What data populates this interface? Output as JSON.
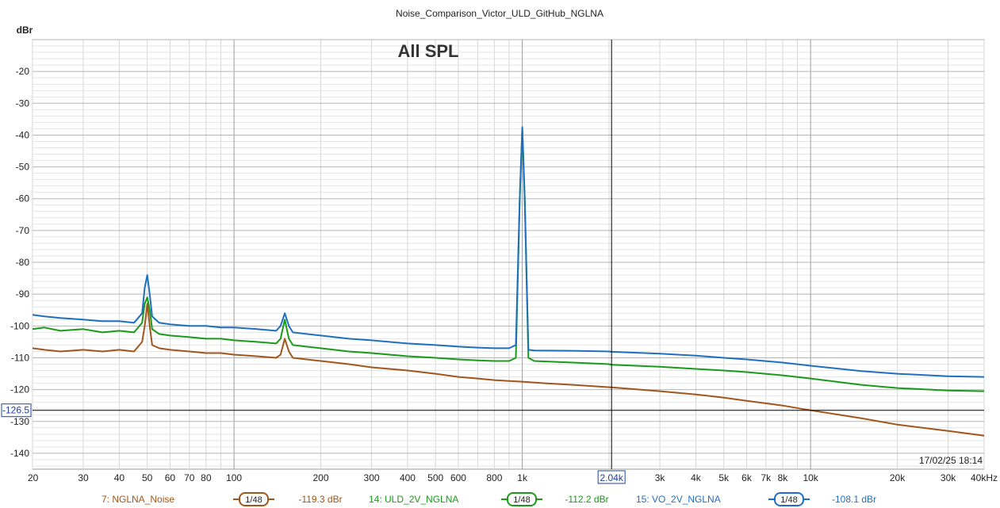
{
  "chart_data": {
    "type": "line",
    "title": "Noise_Comparison_Victor_ULD_GitHub_NGLNA",
    "annotation": "All SPL",
    "ylabel": "dBr",
    "xlabel": "",
    "x_scale": "log",
    "xlim": [
      20,
      40000
    ],
    "ylim": [
      -145,
      -10
    ],
    "grid": true,
    "x_tick_labels": [
      "20",
      "30",
      "40",
      "50",
      "60",
      "70",
      "80",
      "100",
      "200",
      "300",
      "400",
      "500",
      "600",
      "800",
      "1k",
      "3k",
      "4k",
      "5k",
      "6k",
      "7k",
      "8k",
      "10k",
      "20k",
      "30k",
      "40kHz"
    ],
    "x_tick_values": [
      20,
      30,
      40,
      50,
      60,
      70,
      80,
      100,
      200,
      300,
      400,
      500,
      600,
      800,
      1000,
      3000,
      4000,
      5000,
      6000,
      7000,
      8000,
      10000,
      20000,
      30000,
      40000
    ],
    "y_tick_values": [
      -20,
      -30,
      -40,
      -50,
      -60,
      -70,
      -80,
      -90,
      -100,
      -110,
      -120,
      -130,
      -140
    ],
    "y_tick_labels": [
      "-20",
      "-30",
      "-40",
      "-50",
      "-60",
      "-70",
      "-80",
      "-90",
      "-100",
      "-110",
      "-120",
      "-130",
      "-140"
    ],
    "cursor": {
      "x": 2040,
      "x_label": "2.04k",
      "y": -126.5,
      "y_label": "-126.5"
    },
    "timestamp": "17/02/25 18:14",
    "series": [
      {
        "name": "7: NGLNA_Noise",
        "color": "#a0561c",
        "smoothing": "1/48",
        "cursor_value": "-119.3 dBr",
        "x": [
          20,
          22,
          25,
          30,
          35,
          40,
          45,
          48,
          49,
          50,
          51,
          52,
          55,
          60,
          70,
          80,
          90,
          100,
          120,
          140,
          145,
          150,
          155,
          160,
          200,
          250,
          300,
          400,
          500,
          600,
          700,
          800,
          900,
          1000,
          1200,
          1500,
          2040,
          3000,
          4000,
          5000,
          6000,
          8000,
          10000,
          15000,
          20000,
          30000,
          40000
        ],
        "values": [
          -107,
          -107.5,
          -108,
          -107.5,
          -108,
          -107.5,
          -108,
          -105,
          -100,
          -93,
          -100,
          -106,
          -107,
          -107.5,
          -108,
          -108.5,
          -108.5,
          -109,
          -109.5,
          -110,
          -109,
          -104,
          -108,
          -110,
          -111,
          -112,
          -113,
          -114,
          -115,
          -116,
          -116.5,
          -117,
          -117.3,
          -117.5,
          -118,
          -118.5,
          -119.3,
          -120.5,
          -121.5,
          -122.5,
          -123.5,
          -125,
          -126.5,
          -129,
          -131,
          -133,
          -134.5
        ]
      },
      {
        "name": "14: ULD_2V_NGLNA",
        "color": "#1a9a1a",
        "smoothing": "1/48",
        "cursor_value": "-112.2 dBr",
        "x": [
          20,
          22,
          25,
          30,
          35,
          40,
          45,
          48,
          49,
          50,
          51,
          52,
          55,
          60,
          70,
          80,
          90,
          100,
          120,
          140,
          145,
          150,
          155,
          160,
          200,
          250,
          300,
          400,
          500,
          600,
          700,
          800,
          900,
          950,
          980,
          1000,
          1020,
          1050,
          1100,
          1500,
          2000,
          2040,
          3000,
          4000,
          5000,
          6000,
          8000,
          10000,
          15000,
          20000,
          30000,
          40000
        ],
        "values": [
          -101,
          -100.5,
          -101.5,
          -101,
          -102,
          -101.5,
          -102,
          -99,
          -93,
          -91,
          -95,
          -101,
          -102.5,
          -103,
          -103.5,
          -104,
          -104,
          -104.5,
          -105,
          -105.5,
          -104,
          -98,
          -104,
          -106,
          -107,
          -108,
          -108.5,
          -109.5,
          -110,
          -110.5,
          -110.8,
          -111,
          -111,
          -110,
          -60,
          -38,
          -60,
          -110,
          -111,
          -111.5,
          -112,
          -112.2,
          -112.8,
          -113.5,
          -114,
          -114.5,
          -115.5,
          -116.5,
          -118.5,
          -119.5,
          -120.3,
          -120.5
        ]
      },
      {
        "name": "15: VO_2V_NGLNA",
        "color": "#1f6fbf",
        "smoothing": "1/48",
        "cursor_value": "-108.1 dBr",
        "x": [
          20,
          22,
          25,
          30,
          35,
          40,
          45,
          48,
          49,
          50,
          51,
          52,
          55,
          60,
          70,
          80,
          90,
          100,
          120,
          140,
          145,
          150,
          155,
          160,
          200,
          250,
          300,
          400,
          500,
          600,
          700,
          800,
          900,
          950,
          980,
          1000,
          1020,
          1050,
          1100,
          1500,
          2000,
          2040,
          3000,
          4000,
          5000,
          6000,
          8000,
          10000,
          15000,
          20000,
          30000,
          40000
        ],
        "values": [
          -96.5,
          -97,
          -97.5,
          -98,
          -98.5,
          -98.5,
          -99,
          -96,
          -88,
          -84,
          -90,
          -97,
          -99,
          -99.5,
          -100,
          -100,
          -100.5,
          -100.5,
          -101,
          -101.5,
          -100,
          -96,
          -100,
          -102,
          -103,
          -104,
          -104.5,
          -105.5,
          -106,
          -106.5,
          -106.8,
          -107,
          -107,
          -106,
          -60,
          -37.5,
          -60,
          -107.5,
          -107.7,
          -107.8,
          -108,
          -108.1,
          -108.7,
          -109.3,
          -110,
          -110.5,
          -111.5,
          -112.5,
          -114.2,
          -115,
          -115.8,
          -116
        ]
      }
    ]
  }
}
